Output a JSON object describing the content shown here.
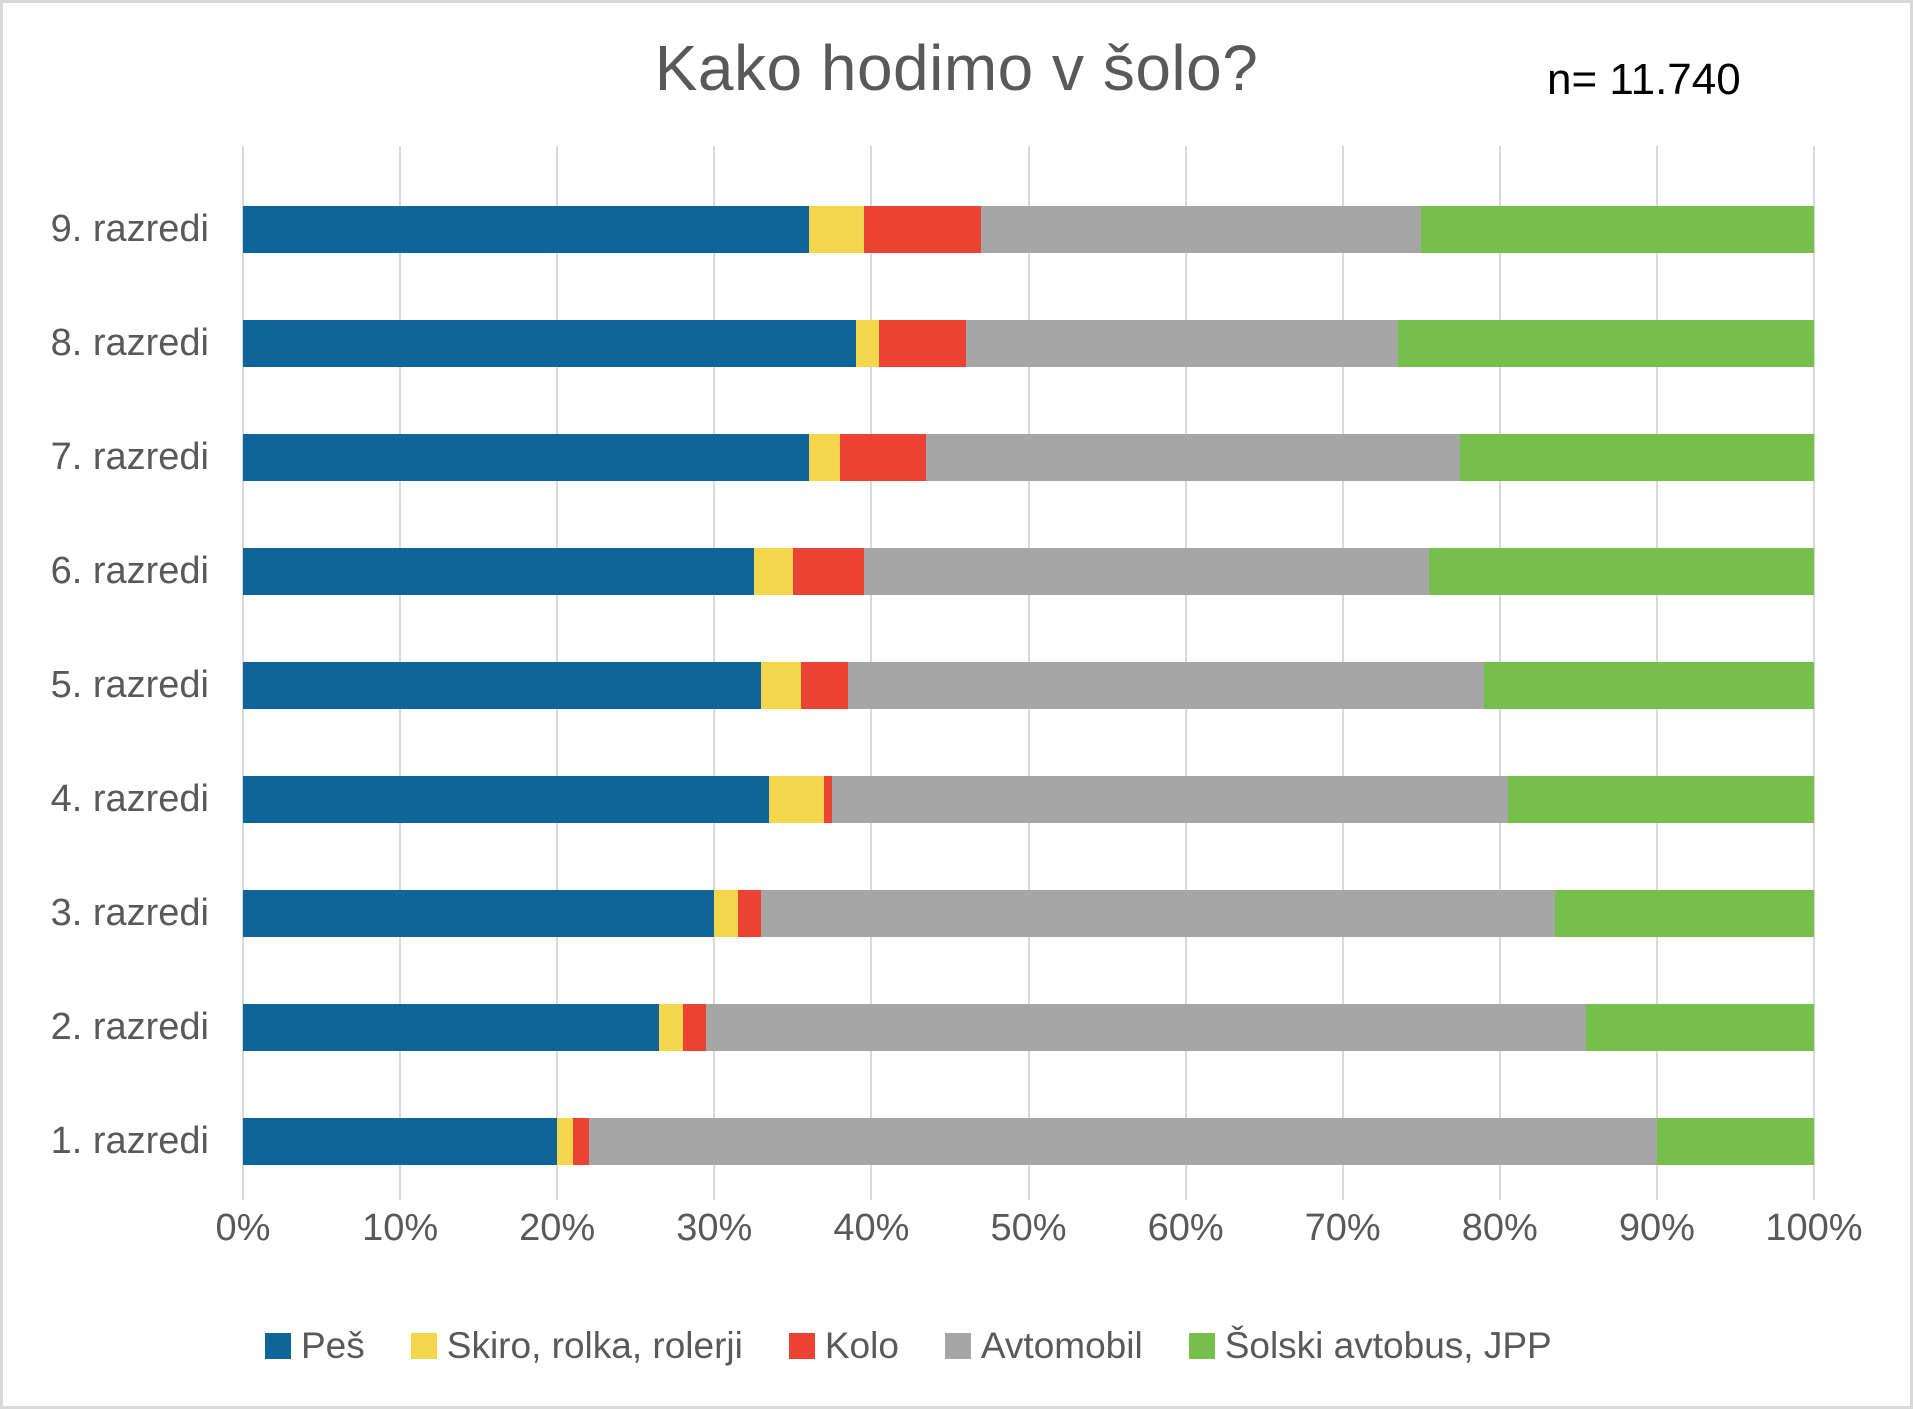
{
  "chart": {
    "title": "Kako hodimo v šolo?",
    "sample_size": "n= 11.740"
  },
  "chart_data": {
    "type": "bar",
    "orientation": "horizontal",
    "stacked": true,
    "stack_total": 100,
    "title": "Kako hodimo v šolo?",
    "annotation": "n= 11.740",
    "categories": [
      "9. razredi",
      "8. razredi",
      "7. razredi",
      "6. razredi",
      "5. razredi",
      "4. razredi",
      "3. razredi",
      "2. razredi",
      "1. razredi"
    ],
    "series": [
      {
        "name": "Peš",
        "color": "#0F6599",
        "values": [
          36,
          39,
          36,
          32.5,
          33,
          33.5,
          30,
          26.5,
          20
        ]
      },
      {
        "name": "Skiro, rolka, rolerji",
        "color": "#F5D74D",
        "values": [
          3.5,
          1.5,
          2,
          2.5,
          2.5,
          3.5,
          1.5,
          1.5,
          1
        ]
      },
      {
        "name": "Kolo",
        "color": "#EA4334",
        "values": [
          7.5,
          5.5,
          5.5,
          4.5,
          3,
          0.5,
          1.5,
          1.5,
          1
        ]
      },
      {
        "name": "Avtomobil",
        "color": "#A6A6A6",
        "values": [
          28,
          27.5,
          34,
          36,
          40.5,
          43,
          50.5,
          56,
          68
        ]
      },
      {
        "name": "Šolski avtobus, JPP",
        "color": "#76BF4B",
        "values": [
          25,
          26.5,
          22.5,
          24.5,
          21,
          19.5,
          16.5,
          14.5,
          10
        ]
      }
    ],
    "x_ticks": [
      "0%",
      "10%",
      "20%",
      "30%",
      "40%",
      "50%",
      "60%",
      "70%",
      "80%",
      "90%",
      "100%"
    ],
    "xlim": [
      0,
      100
    ],
    "grid": "vertical",
    "legend_position": "bottom",
    "colors": {
      "gridline": "#D9D9D9",
      "axis_text": "#595959",
      "title_text": "#595959",
      "annotation_text": "#000000",
      "background": "#FFFFFF",
      "frame_border": "#D9D9D9"
    }
  }
}
